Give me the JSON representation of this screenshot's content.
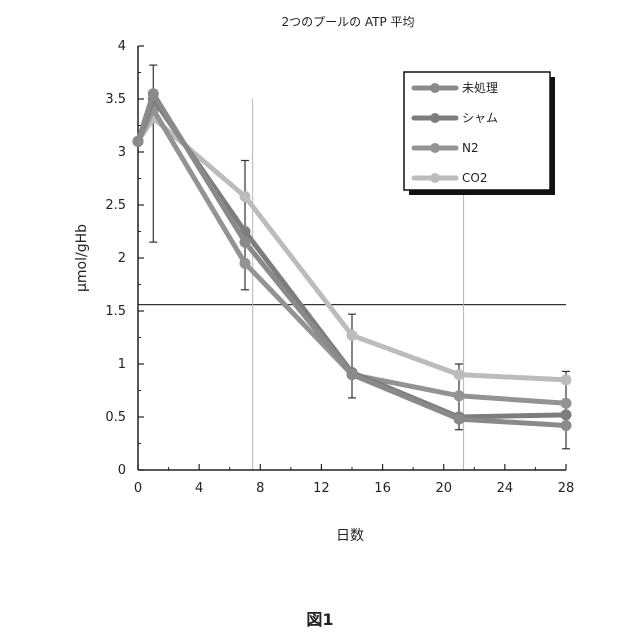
{
  "chart_data": {
    "type": "line",
    "title": "2つのプールの ATP 平均",
    "xlabel": "日数",
    "ylabel": "μmol/gHb",
    "xlim": [
      0,
      28
    ],
    "ylim": [
      0,
      4
    ],
    "xticks": [
      0,
      4,
      8,
      12,
      16,
      20,
      24,
      28
    ],
    "yticks": [
      0,
      0.5,
      1,
      1.5,
      2,
      2.5,
      3,
      3.5,
      4
    ],
    "xtick_labels": [
      "0",
      "4",
      "8",
      "12",
      "16",
      "20",
      "24",
      "28"
    ],
    "ytick_labels": [
      "0",
      "0.5",
      "1",
      "1.5",
      "2",
      "2.5",
      "3",
      "3.5",
      "4"
    ],
    "legend_position": "top-right",
    "reference_lines": {
      "horizontal_y": 1.56,
      "vertical_x": [
        7.5,
        21.3
      ]
    },
    "series": [
      {
        "name": "未処理",
        "color": "#8a8a8a",
        "x": [
          0,
          1,
          7,
          14,
          21,
          28
        ],
        "y": [
          3.1,
          3.55,
          2.15,
          0.9,
          0.48,
          0.42
        ]
      },
      {
        "name": "シャム",
        "color": "#7d7d7d",
        "x": [
          0,
          1,
          7,
          14,
          21,
          28
        ],
        "y": [
          3.1,
          3.5,
          2.25,
          0.92,
          0.5,
          0.52
        ]
      },
      {
        "name": "N2",
        "color": "#939393",
        "x": [
          0,
          1,
          7,
          14,
          21,
          28
        ],
        "y": [
          3.1,
          3.4,
          1.95,
          0.9,
          0.7,
          0.63
        ]
      },
      {
        "name": "CO2",
        "color": "#bcbcbc",
        "x": [
          0,
          1,
          7,
          14,
          21,
          28
        ],
        "y": [
          3.1,
          3.32,
          2.58,
          1.27,
          0.9,
          0.85
        ]
      }
    ],
    "error_bars": [
      {
        "x": 1,
        "low": 2.15,
        "high": 3.82
      },
      {
        "x": 7,
        "low": 1.7,
        "high": 2.92
      },
      {
        "x": 14,
        "low": 0.68,
        "high": 1.47
      },
      {
        "x": 21,
        "low": 0.38,
        "high": 1.0
      },
      {
        "x": 28,
        "low": 0.2,
        "high": 0.93
      }
    ]
  },
  "figure_caption": "図1"
}
